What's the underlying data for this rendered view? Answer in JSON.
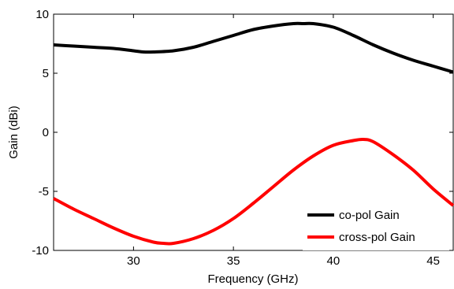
{
  "chart_data": {
    "type": "line",
    "title": "",
    "xlabel": "Frequency (GHz)",
    "ylabel": "Gain (dBi)",
    "xlim": [
      26,
      46
    ],
    "ylim": [
      -10,
      10
    ],
    "xticks": [
      30,
      35,
      40,
      45
    ],
    "yticks": [
      -10,
      -5,
      0,
      5,
      10
    ],
    "grid": false,
    "legend": "bottom-right",
    "series": [
      {
        "name": "co-pol Gain",
        "color": "#000000",
        "x": [
          26,
          27,
          28,
          29,
          30,
          30.5,
          31,
          32,
          33,
          34,
          35,
          36,
          37,
          38,
          38.5,
          39,
          40,
          41,
          42,
          43,
          44,
          45,
          46
        ],
        "y": [
          7.4,
          7.3,
          7.2,
          7.1,
          6.9,
          6.8,
          6.8,
          6.9,
          7.2,
          7.7,
          8.2,
          8.7,
          9.0,
          9.2,
          9.2,
          9.2,
          8.9,
          8.2,
          7.4,
          6.7,
          6.1,
          5.6,
          5.1
        ]
      },
      {
        "name": "cross-pol Gain",
        "color": "#ff0000",
        "x": [
          26,
          27,
          28,
          29,
          30,
          31,
          31.5,
          32,
          33,
          34,
          35,
          36,
          37,
          38,
          39,
          40,
          41,
          41.5,
          42,
          43,
          44,
          45,
          46
        ],
        "y": [
          -5.6,
          -6.5,
          -7.3,
          -8.1,
          -8.8,
          -9.3,
          -9.4,
          -9.4,
          -9.0,
          -8.3,
          -7.3,
          -6.0,
          -4.6,
          -3.2,
          -2.0,
          -1.1,
          -0.7,
          -0.6,
          -0.8,
          -1.9,
          -3.2,
          -4.8,
          -6.2
        ]
      }
    ]
  }
}
